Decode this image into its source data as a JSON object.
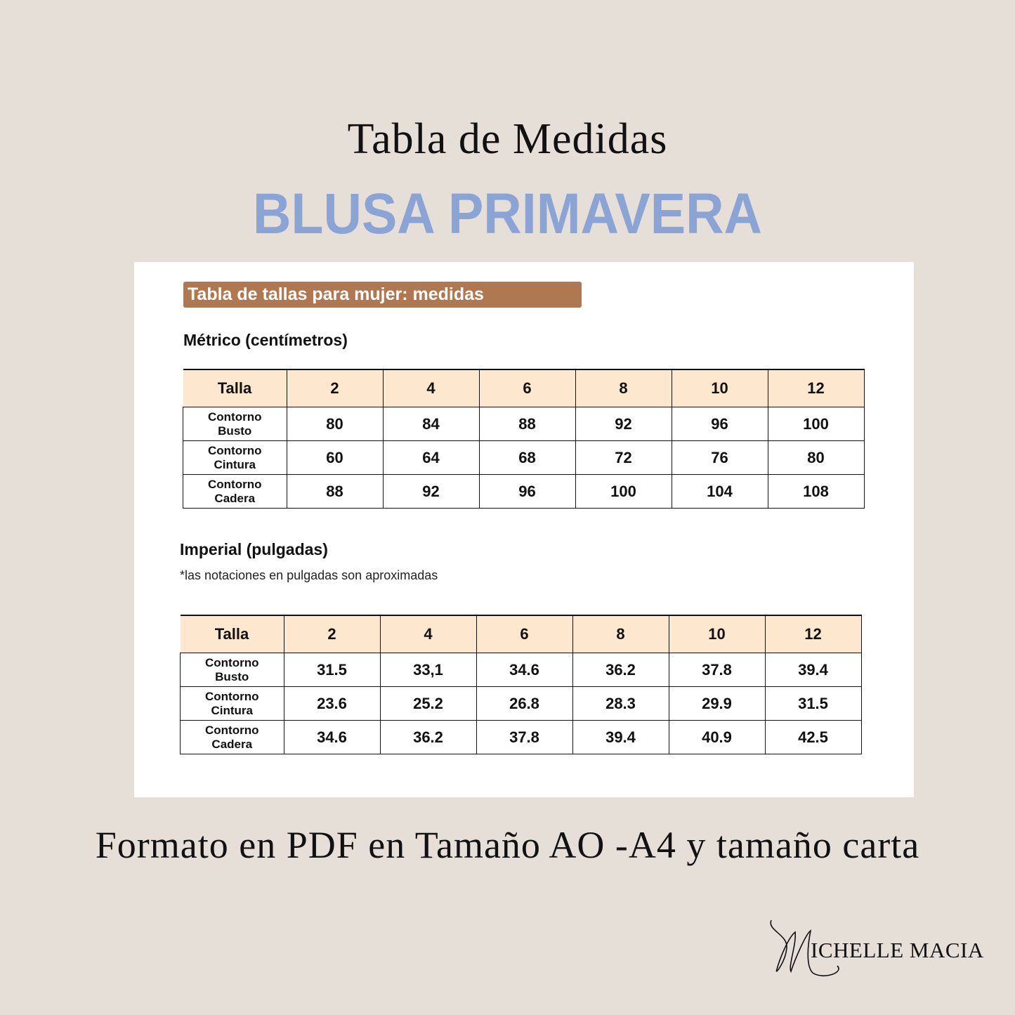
{
  "header": {
    "title": "Tabla de Medidas",
    "subtitle": "BLUSA PRIMAVERA"
  },
  "card": {
    "banner": "Tabla de tallas para mujer: medidas",
    "metric": {
      "heading": "Métrico (centímetros)",
      "columns": [
        "Talla",
        "2",
        "4",
        "6",
        "8",
        "10",
        "12"
      ],
      "rows": [
        {
          "label1": "Contorno",
          "label2": "Busto",
          "values": [
            "80",
            "84",
            "88",
            "92",
            "96",
            "100"
          ]
        },
        {
          "label1": "Contorno",
          "label2": "Cintura",
          "values": [
            "60",
            "64",
            "68",
            "72",
            "76",
            "80"
          ]
        },
        {
          "label1": "Contorno",
          "label2": "Cadera",
          "values": [
            "88",
            "92",
            "96",
            "100",
            "104",
            "108"
          ]
        }
      ]
    },
    "imperial": {
      "heading": "Imperial (pulgadas)",
      "note": "*las notaciones en pulgadas son aproximadas",
      "columns": [
        "Talla",
        "2",
        "4",
        "6",
        "8",
        "10",
        "12"
      ],
      "rows": [
        {
          "label1": "Contorno",
          "label2": "Busto",
          "values": [
            "31.5",
            "33,1",
            "34.6",
            "36.2",
            "37.8",
            "39.4"
          ]
        },
        {
          "label1": "Contorno",
          "label2": "Cintura",
          "values": [
            "23.6",
            "25.2",
            "26.8",
            "28.3",
            "29.9",
            "31.5"
          ]
        },
        {
          "label1": "Contorno",
          "label2": "Cadera",
          "values": [
            "34.6",
            "36.2",
            "37.8",
            "39.4",
            "40.9",
            "42.5"
          ]
        }
      ]
    }
  },
  "footer": "Formato en PDF en Tamaño AO -A4 y tamaño carta",
  "logo": {
    "text": "MICHELLE MACIA",
    "rest": "ICHELLE MACIA"
  },
  "colors": {
    "background": "#e6dfd8",
    "accent_blue": "#8aa4d6",
    "banner_brown": "#b07850",
    "header_fill": "#fde8cf"
  }
}
